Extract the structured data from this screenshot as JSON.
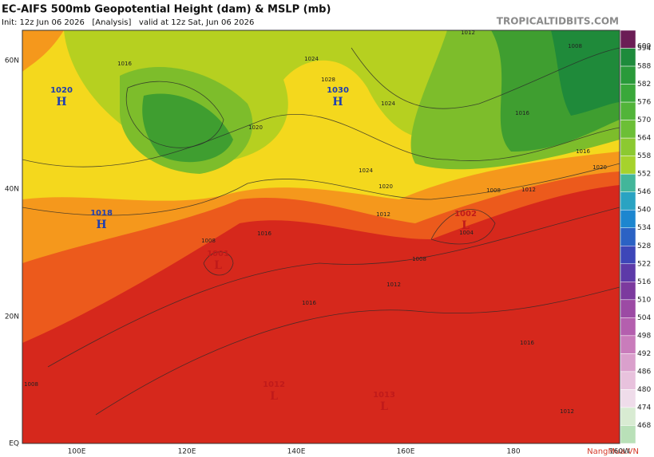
{
  "header": {
    "title": "EC-AIFS 500mb Geopotential Height (dam) & MSLP (mb)",
    "subtitle": "Init: 12z Jun 06 2026   [Analysis]   valid at 12z Sat, Jun 06 2026",
    "site": "TROPICALTIDBITS.COM"
  },
  "axes": {
    "lat": [
      "60N",
      "40N",
      "20N",
      "EQ"
    ],
    "lon": [
      "100E",
      "120E",
      "140E",
      "160E",
      "180",
      "160W"
    ]
  },
  "colorbar": {
    "labels": [
      600,
      594,
      588,
      582,
      576,
      570,
      564,
      558,
      552,
      546,
      540,
      534,
      528,
      522,
      516,
      510,
      504,
      498,
      492,
      486,
      480,
      474,
      468
    ],
    "colors": [
      "#6b1d55",
      "#1e8b3c",
      "#2a9a3a",
      "#3aa83a",
      "#52b43a",
      "#6cbf36",
      "#8cc931",
      "#a6d22c",
      "#43b69a",
      "#2aa3c2",
      "#1d86cf",
      "#2b62c4",
      "#3d46b8",
      "#5d3aa8",
      "#7c3a9e",
      "#9c4aa4",
      "#b45fae",
      "#c97cbb",
      "#daa0cc",
      "#e8c2dd",
      "#efdcea",
      "#d8ebd2",
      "#b9e0b8"
    ]
  },
  "pressure_centers": [
    {
      "value": 1020,
      "symbol": "H"
    },
    {
      "value": 1030,
      "symbol": "H"
    },
    {
      "value": 1018,
      "symbol": "H"
    },
    {
      "value": 1001,
      "symbol": "L"
    },
    {
      "value": 1002,
      "symbol": "L"
    },
    {
      "value": 1012,
      "symbol": "L"
    },
    {
      "value": 1013,
      "symbol": "L"
    }
  ],
  "contour_labels": [
    1016,
    1024,
    1012,
    1008,
    1016,
    1016,
    1020,
    1024,
    1020,
    1012,
    1008,
    1012,
    1004,
    1008,
    1012,
    1016,
    1016,
    1012,
    1008,
    1008,
    1016,
    1028,
    1024,
    1020
  ],
  "watermark": "NangMua.VN"
}
